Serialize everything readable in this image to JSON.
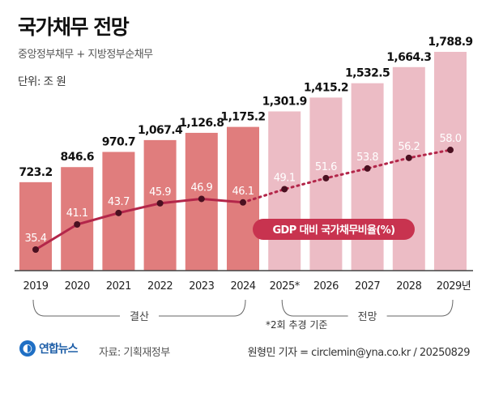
{
  "title": "국가채무 전망",
  "subtitle": "중앙정부채무 + 지방정부순채무",
  "unit": "단위: 조 원",
  "chart_data": {
    "type": "bar",
    "categories": [
      "2019",
      "2020",
      "2021",
      "2022",
      "2023",
      "2024",
      "2025*",
      "2026",
      "2027",
      "2028",
      "2029년"
    ],
    "series": [
      {
        "values": [
          723.2,
          846.6,
          970.7,
          1067.4,
          1126.8,
          1175.2,
          1301.9,
          1415.2,
          1532.5,
          1664.3,
          1788.9
        ],
        "labels": [
          "723.2",
          "846.6",
          "970.7",
          "1,067.4",
          "1,126.8",
          "1,175.2",
          "1,301.9",
          "1,415.2",
          "1,532.5",
          "1,664.3",
          "1,788.9"
        ]
      },
      {
        "name": "GDP 대비 국가채무비율(%)",
        "type": "line",
        "values": [
          35.4,
          41.1,
          43.7,
          45.9,
          46.9,
          46.1,
          49.1,
          51.6,
          53.8,
          56.2,
          58.0
        ],
        "labels": [
          "35.4",
          "41.1",
          "43.7",
          "45.9",
          "46.9",
          "46.1",
          "49.1",
          "51.6",
          "53.8",
          "56.2",
          "58.0"
        ]
      }
    ],
    "groups": [
      {
        "label": "결산",
        "from": "2019",
        "to": "2024"
      },
      {
        "label": "전망",
        "from": "2025*",
        "to": "2029년"
      }
    ],
    "note": "*2회 추경 기준",
    "colors": {
      "actual_bar": "#e07d7d",
      "forecast_bar": "#ecbcc5",
      "line": "#b3264a",
      "ratio_badge": "#c8334f"
    }
  },
  "footer": {
    "logo": "연합뉴스",
    "source": "자료: 기획재정부",
    "credit": "원형민 기자 = circlemin@yna.co.kr / 20250829"
  }
}
